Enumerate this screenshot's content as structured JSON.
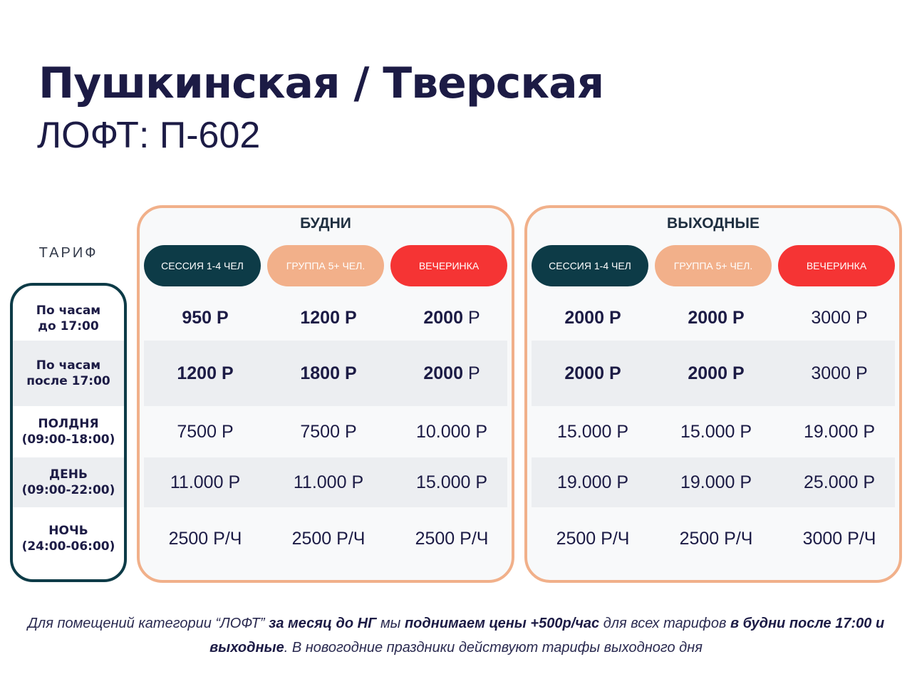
{
  "title": "Пушкинская / Тверская",
  "subtitle": "ЛОФТ: П-602",
  "tariff_label": "ТАРИФ",
  "colors": {
    "session": "#0d3b47",
    "group": "#f2b08a",
    "party": "#f53434",
    "border": "#f1b08a",
    "text": "#1c1b45"
  },
  "rows": [
    "По часам\nдо 17:00",
    "По часам\nпосле 17:00",
    "ПОЛДНЯ\n(09:00-18:00)",
    "ДЕНЬ\n(09:00-22:00)",
    "НОЧЬ\n(24:00-06:00)"
  ],
  "panels": [
    {
      "title": "БУДНИ",
      "columns": [
        "СЕССИЯ 1-4 ЧЕЛ",
        "ГРУППА 5+ ЧЕЛ.",
        "ВЕЧЕРИНКА"
      ],
      "cells": [
        [
          {
            "v": "950",
            "u": "Р",
            "b": "all"
          },
          {
            "v": "1200",
            "u": "Р",
            "b": "all"
          },
          {
            "v": "2000",
            "u": "Р",
            "b": "num"
          }
        ],
        [
          {
            "v": "1200",
            "u": "Р",
            "b": "all"
          },
          {
            "v": "1800",
            "u": "Р",
            "b": "all"
          },
          {
            "v": "2000",
            "u": "Р",
            "b": "num"
          }
        ],
        [
          {
            "v": "7500",
            "u": "Р",
            "b": "none"
          },
          {
            "v": "7500",
            "u": "Р",
            "b": "none"
          },
          {
            "v": "10.000",
            "u": "Р",
            "b": "none"
          }
        ],
        [
          {
            "v": "11.000",
            "u": "Р",
            "b": "none"
          },
          {
            "v": "11.000",
            "u": "Р",
            "b": "none"
          },
          {
            "v": "15.000",
            "u": "Р",
            "b": "none"
          }
        ],
        [
          {
            "v": "2500",
            "u": "Р/Ч",
            "b": "none"
          },
          {
            "v": "2500",
            "u": "Р/Ч",
            "b": "none"
          },
          {
            "v": "2500",
            "u": "Р/Ч",
            "b": "none"
          }
        ]
      ]
    },
    {
      "title": "ВЫХОДНЫЕ",
      "columns": [
        "СЕССИЯ 1-4 ЧЕЛ",
        "ГРУППА 5+ ЧЕЛ.",
        "ВЕЧЕРИНКА"
      ],
      "cells": [
        [
          {
            "v": "2000",
            "u": "Р",
            "b": "all"
          },
          {
            "v": "2000",
            "u": "Р",
            "b": "all"
          },
          {
            "v": "3000",
            "u": "Р",
            "b": "none"
          }
        ],
        [
          {
            "v": "2000",
            "u": "Р",
            "b": "all"
          },
          {
            "v": "2000",
            "u": "Р",
            "b": "all"
          },
          {
            "v": "3000",
            "u": "Р",
            "b": "none"
          }
        ],
        [
          {
            "v": "15.000",
            "u": "Р",
            "b": "none"
          },
          {
            "v": "15.000",
            "u": "Р",
            "b": "none"
          },
          {
            "v": "19.000",
            "u": "Р",
            "b": "none"
          }
        ],
        [
          {
            "v": "19.000",
            "u": "Р",
            "b": "none"
          },
          {
            "v": "19.000",
            "u": "Р",
            "b": "none"
          },
          {
            "v": "25.000",
            "u": "Р",
            "b": "none"
          }
        ],
        [
          {
            "v": "2500",
            "u": "Р/Ч",
            "b": "none"
          },
          {
            "v": "2500",
            "u": "Р/Ч",
            "b": "none"
          },
          {
            "v": "3000",
            "u": "Р/Ч",
            "b": "none"
          }
        ]
      ]
    }
  ],
  "footer": [
    {
      "t": "Для помещений категории “ЛОФТ” ",
      "b": false
    },
    {
      "t": "за месяц до НГ",
      "b": true
    },
    {
      "t": " мы ",
      "b": false
    },
    {
      "t": "поднимаем цены +500р/час",
      "b": true
    },
    {
      "t": "  для всех тарифов ",
      "b": false
    },
    {
      "t": "в будни после 17:00 и выходные",
      "b": true
    },
    {
      "t": ". В новогодние праздники действуют тарифы выходного дня",
      "b": false
    }
  ]
}
